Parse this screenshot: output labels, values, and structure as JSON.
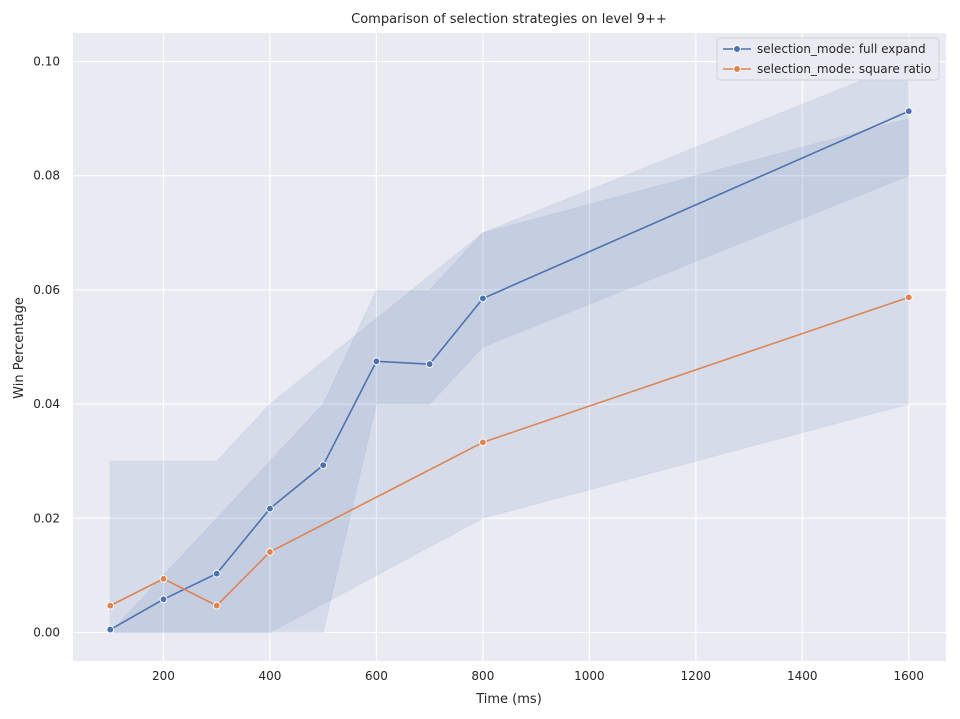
{
  "chart_data": {
    "type": "line",
    "title": "Comparison of selection strategies on level 9++",
    "xlabel": "Time (ms)",
    "ylabel": "Win Percentage",
    "xlim": [
      30,
      1670
    ],
    "ylim": [
      -0.005,
      0.105
    ],
    "xticks": [
      200,
      400,
      600,
      800,
      1000,
      1200,
      1400,
      1600
    ],
    "yticks": [
      0.0,
      0.02,
      0.04,
      0.06,
      0.08,
      0.1
    ],
    "ytick_labels": [
      "0.00",
      "0.02",
      "0.04",
      "0.06",
      "0.08",
      "0.10"
    ],
    "grid": true,
    "legend_position": "top-right",
    "series": [
      {
        "name": "selection_mode: full expand",
        "color": "#4c72b0",
        "x": [
          100,
          200,
          300,
          400,
          500,
          600,
          700,
          800,
          1600
        ],
        "y": [
          0.0005,
          0.0058,
          0.0103,
          0.0217,
          0.0293,
          0.0475,
          0.047,
          0.0585,
          0.0913
        ],
        "ci_low": [
          0.0,
          0.0,
          0.0,
          0.0,
          0.0,
          0.04,
          0.04,
          0.05,
          0.08
        ],
        "ci_high": [
          0.0,
          0.01,
          0.02,
          0.03,
          0.04,
          0.06,
          0.06,
          0.07,
          0.09
        ]
      },
      {
        "name": "selection_mode: square ratio",
        "color": "#dd8452",
        "x": [
          100,
          200,
          300,
          400,
          800,
          1600
        ],
        "y": [
          0.0047,
          0.0094,
          0.0047,
          0.0141,
          0.0333,
          0.0587
        ],
        "ci_low": [
          0.0,
          0.0,
          0.0,
          0.0,
          0.02,
          0.04
        ],
        "ci_high": [
          0.03,
          0.03,
          0.03,
          0.04,
          0.07,
          0.1
        ]
      }
    ]
  }
}
